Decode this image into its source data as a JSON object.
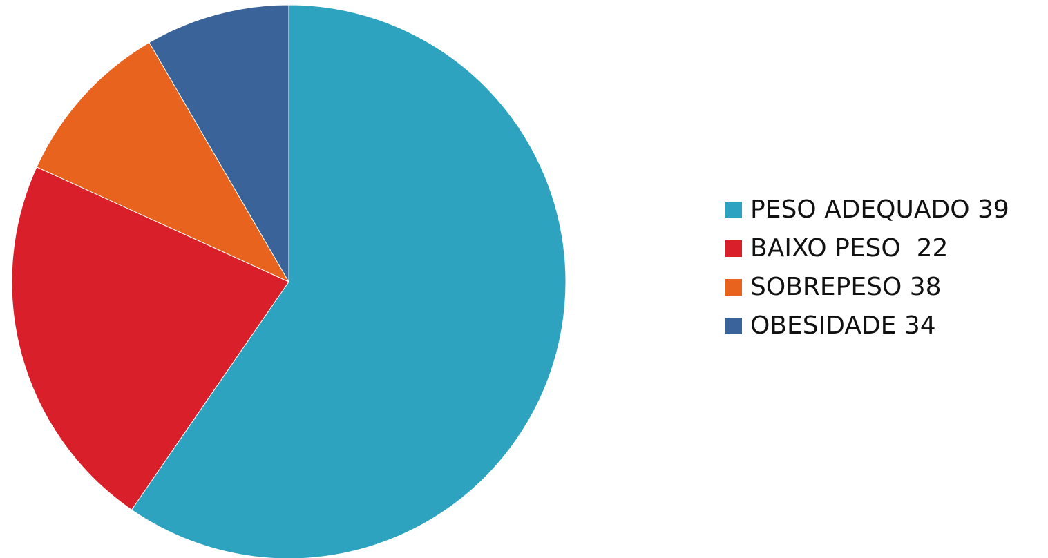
{
  "chart_data": {
    "type": "pie",
    "series": [
      {
        "slices": [
          {
            "label": "PESO ADEQUADO 39",
            "value": 59.6,
            "color": "#2EA3BF",
            "icon": "legend-swatch"
          },
          {
            "label": "BAIXO PESO  22",
            "value": 22.2,
            "color": "#D9202A",
            "icon": "legend-swatch"
          },
          {
            "label": "SOBREPESO 38",
            "value": 9.8,
            "color": "#E8641E",
            "icon": "legend-swatch"
          },
          {
            "label": "OBESIDADE 34",
            "value": 8.4,
            "color": "#3A6499",
            "icon": "legend-swatch"
          }
        ]
      }
    ],
    "legend_position": "right",
    "start_angle": "top",
    "direction": "clockwise"
  }
}
